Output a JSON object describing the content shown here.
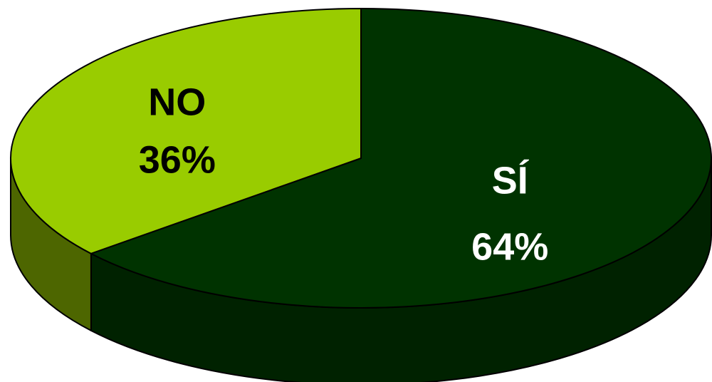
{
  "chart_data": {
    "type": "pie",
    "style": "3d",
    "title": "",
    "slices": [
      {
        "label": "SÍ",
        "value": 64,
        "value_label": "64%",
        "color": "#003300",
        "side_color": "#002200",
        "text_color": "#ffffff"
      },
      {
        "label": "NO",
        "value": 36,
        "value_label": "36%",
        "color": "#99cc00",
        "side_color": "#4d6600",
        "text_color": "#000000"
      }
    ]
  }
}
